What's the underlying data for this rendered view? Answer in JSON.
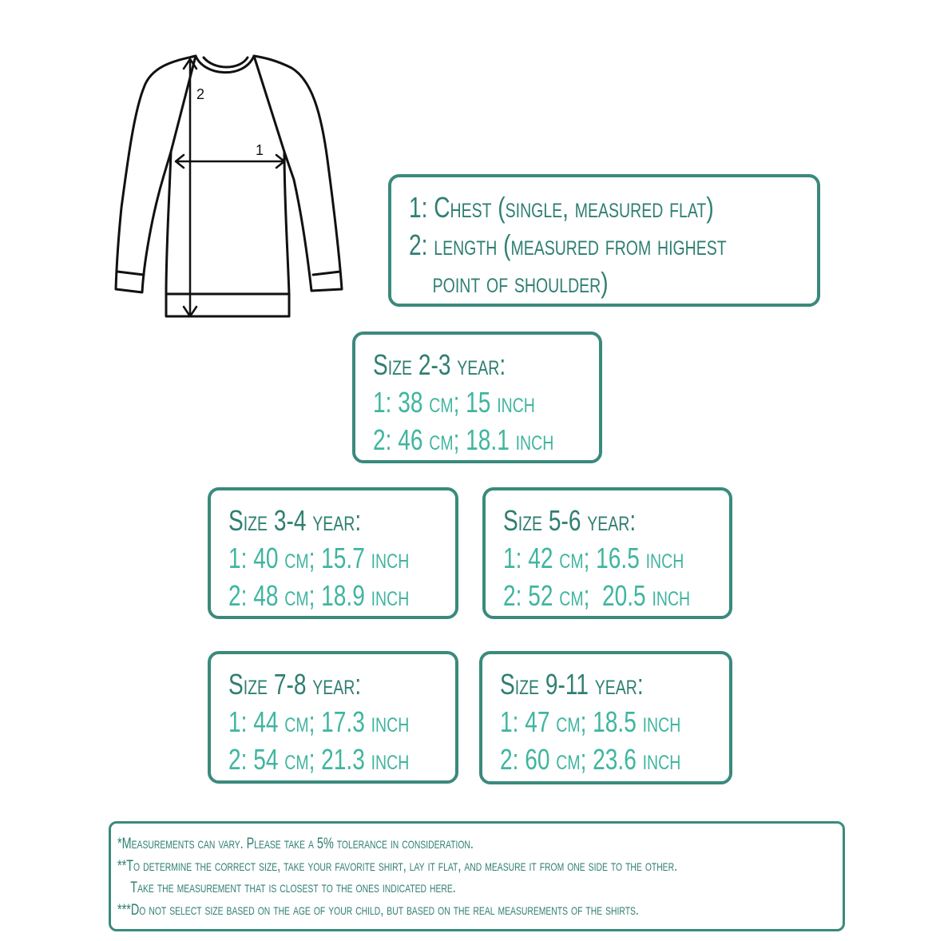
{
  "diagram": {
    "labels": [
      "1",
      "2"
    ]
  },
  "legend": {
    "lines": [
      "1: Chest (single, measured flat)",
      "2: length (measured from highest",
      "point of shoulder)"
    ]
  },
  "sizes": [
    {
      "title": "Size 2-3 year:",
      "chest": "1: 38 cm; 15 inch",
      "length": "2: 46 cm; 18.1 inch"
    },
    {
      "title": "Size 3-4 year:",
      "chest": "1: 40 cm; 15.7 inch",
      "length": "2: 48 cm; 18.9 inch"
    },
    {
      "title": "Size 5-6 year:",
      "chest": "1: 42 cm; 16.5 inch",
      "length": "2: 52 cm;  20.5 inch"
    },
    {
      "title": "Size 7-8 year:",
      "chest": "1: 44 cm; 17.3 inch",
      "length": "2: 54 cm; 21.3 inch"
    },
    {
      "title": "Size 9-11 year:",
      "chest": "1: 47 cm; 18.5 inch",
      "length": "2: 60 cm; 23.6 inch"
    }
  ],
  "notes": [
    "*Measurements can vary. Please take a 5% tolerance in consideration.",
    "**To determine the correct size, take your favorite shirt, lay it flat, and measure it from one side to the other.",
    "Take the measurement that is closest to the ones indicated here.",
    "***Do not select size based on the age of your child, but based on the real measurements of the shirts."
  ],
  "colors": {
    "border": "#3a8a7c",
    "heading": "#2f7f72",
    "value": "#40b5a0"
  }
}
